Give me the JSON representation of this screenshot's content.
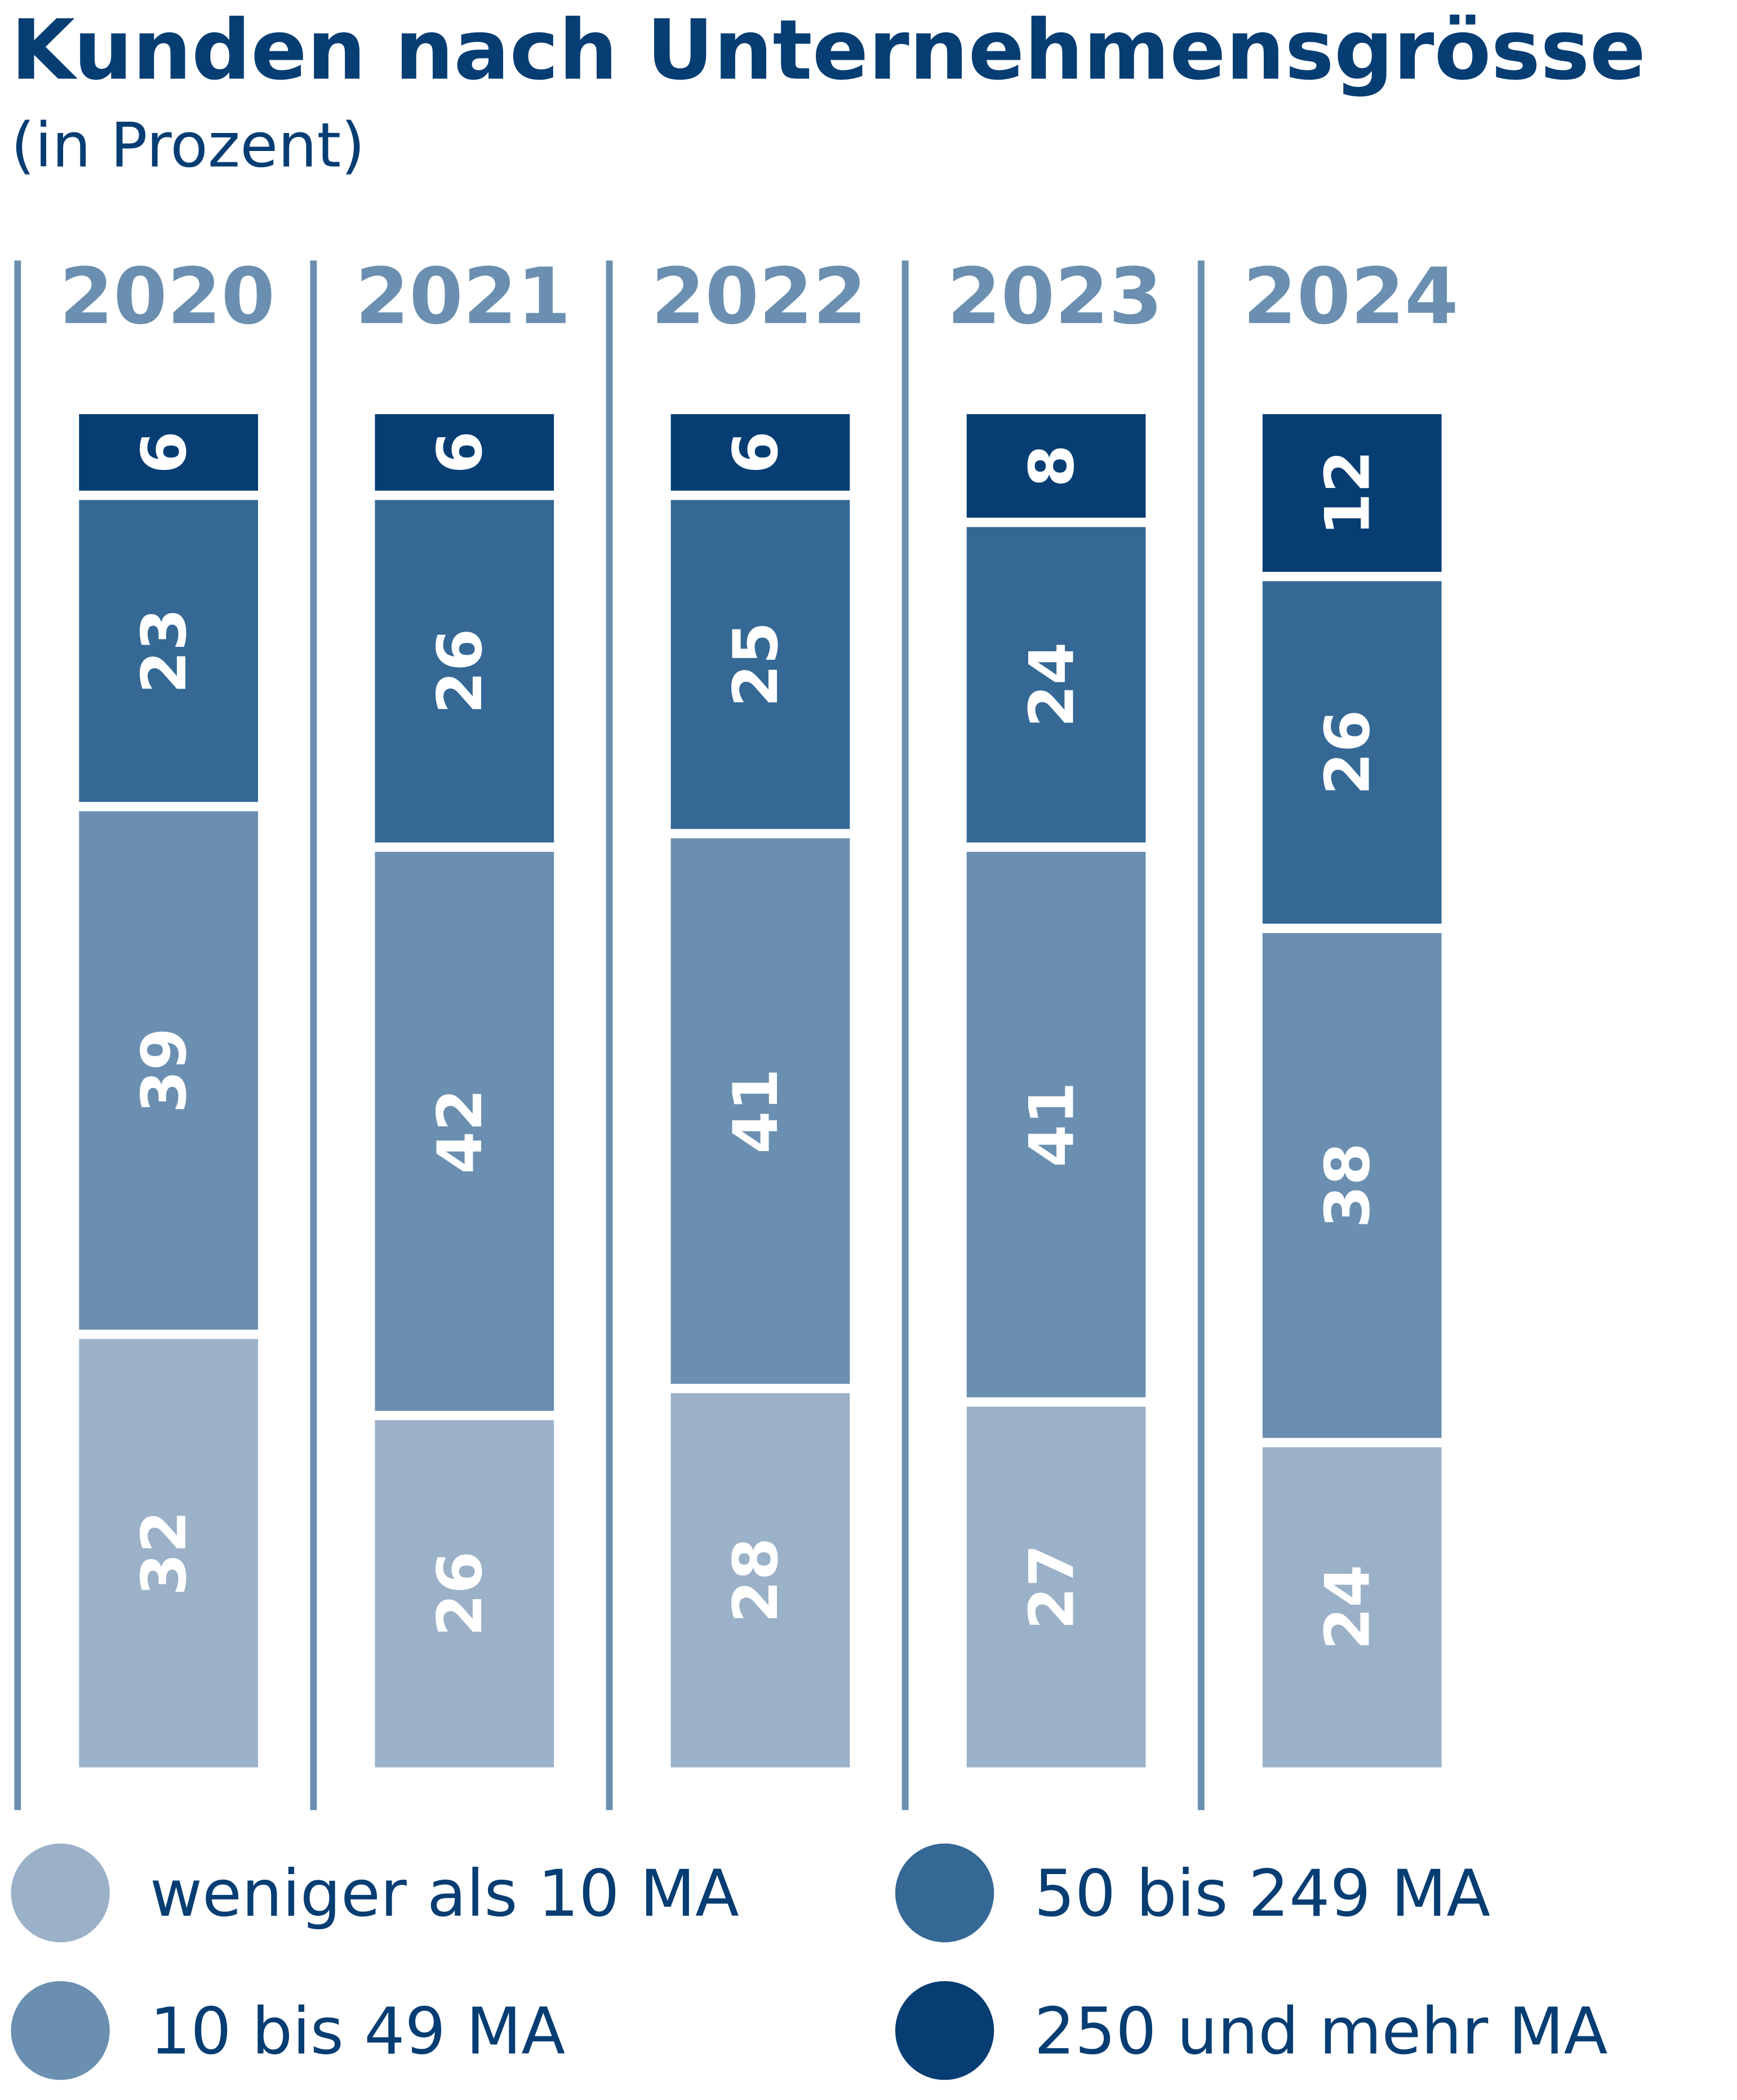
{
  "chart_data": {
    "type": "stacked-bar",
    "title": "Kunden nach Unternehmensgrösse",
    "subtitle": "(in Prozent)",
    "categories": [
      "2020",
      "2021",
      "2022",
      "2023",
      "2024"
    ],
    "series": [
      {
        "name": "weniger als 10 MA",
        "color": "#9bb1c8",
        "values": [
          32,
          26,
          28,
          27,
          24
        ]
      },
      {
        "name": "10 bis 49 MA",
        "color": "#6a8fb0",
        "values": [
          39,
          42,
          41,
          41,
          38
        ]
      },
      {
        "name": "50 bis 249 MA",
        "color": "#356895",
        "values": [
          23,
          26,
          25,
          24,
          26
        ]
      },
      {
        "name": "250 und mehr MA",
        "color": "#063d73",
        "values": [
          6,
          6,
          6,
          8,
          12
        ]
      }
    ]
  }
}
